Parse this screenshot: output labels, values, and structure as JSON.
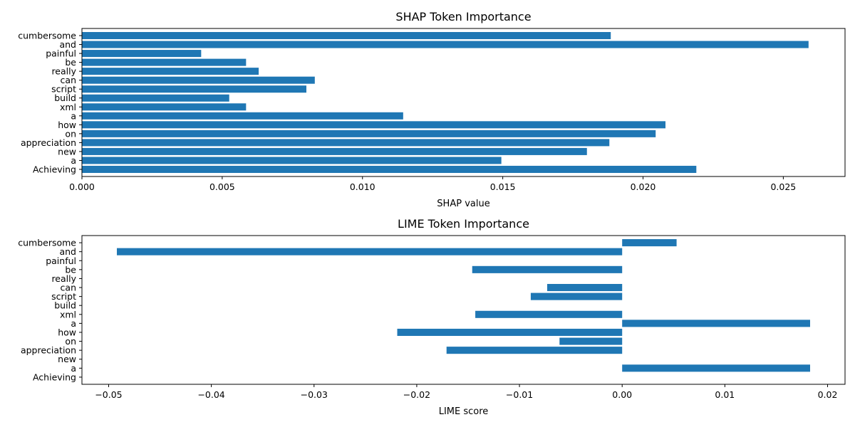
{
  "chart_data": [
    {
      "type": "bar",
      "orientation": "horizontal",
      "title": "SHAP Token Importance",
      "xlabel": "SHAP value",
      "ylabel": "",
      "categories": [
        "Achieving",
        "a",
        "new",
        "appreciation",
        "on",
        "how",
        "a",
        "xml",
        "build",
        "script",
        "can",
        "really",
        "be",
        "painful",
        "and",
        "cumbersome"
      ],
      "values": [
        0.0219,
        0.01495,
        0.018,
        0.0188,
        0.02045,
        0.0208,
        0.01145,
        0.00585,
        0.00525,
        0.008,
        0.0083,
        0.0063,
        0.00585,
        0.00425,
        0.0259,
        0.01885
      ],
      "xlim": [
        0.0,
        0.0272
      ],
      "xticks": [
        0.0,
        0.005,
        0.01,
        0.015,
        0.02,
        0.025
      ],
      "xtick_labels": [
        "0.000",
        "0.005",
        "0.010",
        "0.015",
        "0.020",
        "0.025"
      ],
      "bar_color": "#1f77b4",
      "grid": false
    },
    {
      "type": "bar",
      "orientation": "horizontal",
      "title": "LIME Token Importance",
      "xlabel": "LIME score",
      "ylabel": "",
      "categories": [
        "Achieving",
        "a",
        "new",
        "appreciation",
        "on",
        "how",
        "a",
        "xml",
        "build",
        "script",
        "can",
        "really",
        "be",
        "painful",
        "and",
        "cumbersome"
      ],
      "values": [
        0.0,
        0.0183,
        0.0,
        -0.0171,
        -0.0061,
        -0.0219,
        0.0183,
        -0.0143,
        0.0,
        -0.0089,
        -0.0073,
        0.0,
        -0.0146,
        0.0,
        -0.0492,
        0.0053
      ],
      "xlim": [
        -0.0526,
        0.0217
      ],
      "xticks": [
        -0.05,
        -0.04,
        -0.03,
        -0.02,
        -0.01,
        0.0,
        0.01,
        0.02
      ],
      "xtick_labels": [
        "−0.05",
        "−0.04",
        "−0.03",
        "−0.02",
        "−0.01",
        "0.00",
        "0.01",
        "0.02"
      ],
      "bar_color": "#1f77b4",
      "grid": false
    }
  ]
}
